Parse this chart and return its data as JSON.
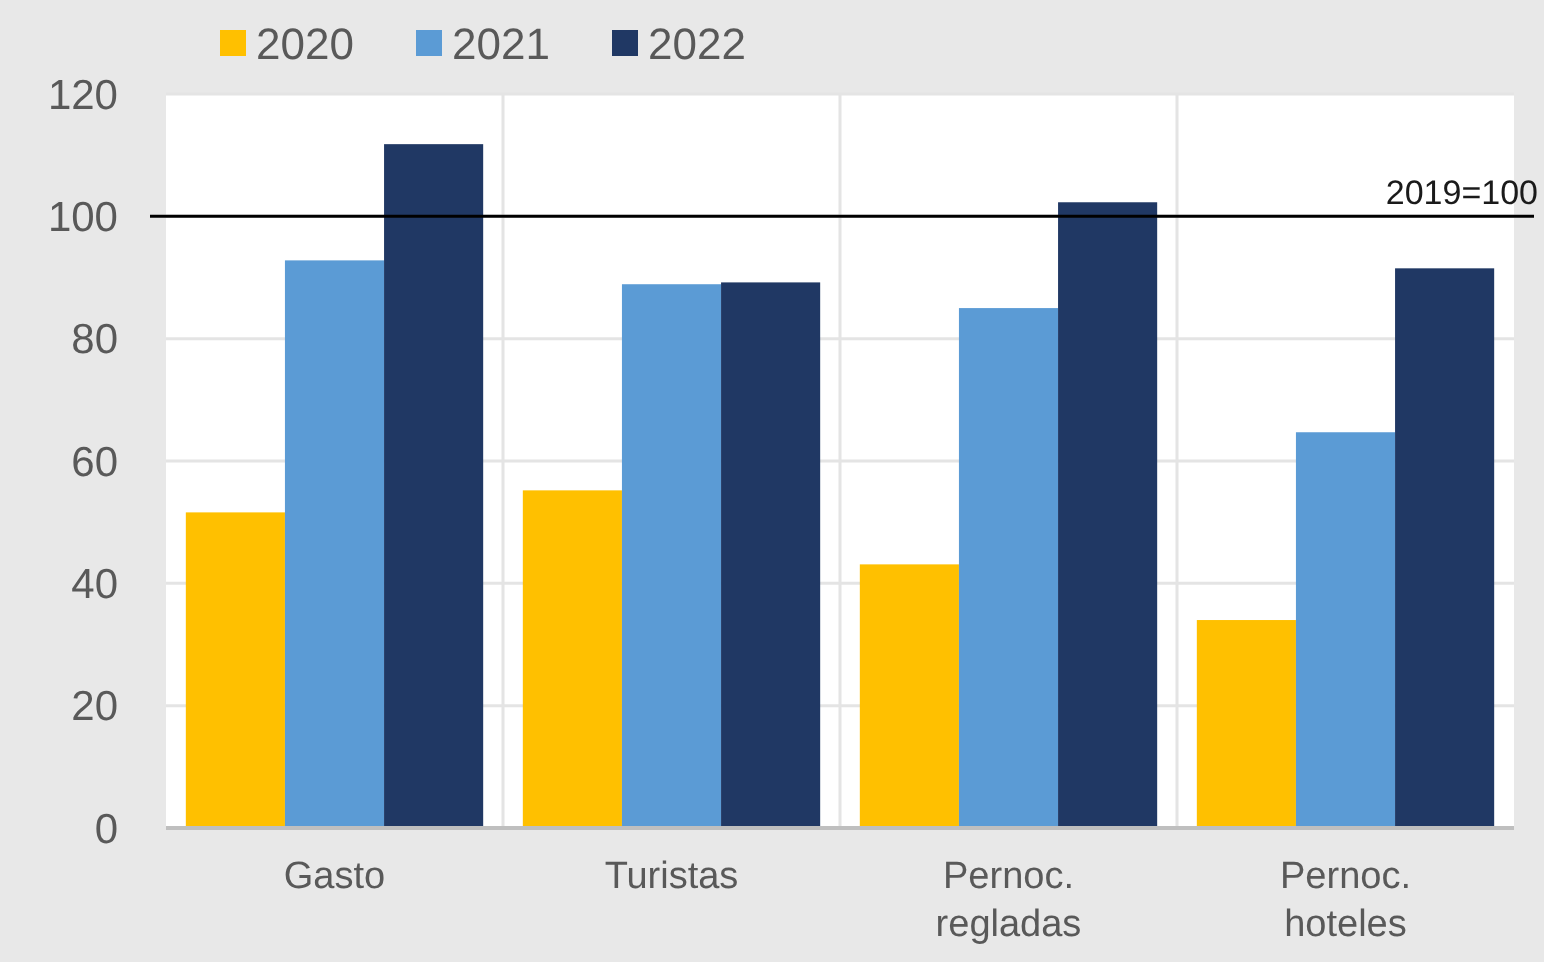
{
  "chart_data": {
    "type": "bar",
    "categories": [
      "Gasto",
      "Turistas",
      "Pernoc. regladas",
      "Pernoc. hoteles"
    ],
    "series": [
      {
        "name": "2020",
        "color": "#ffc000",
        "values": [
          51.6,
          55.2,
          43.1,
          34
        ]
      },
      {
        "name": "2021",
        "color": "#5b9bd5",
        "values": [
          92.8,
          88.9,
          85,
          64.7
        ]
      },
      {
        "name": "2022",
        "color": "#203864",
        "values": [
          111.8,
          89.2,
          102.3,
          91.5
        ]
      }
    ],
    "ylim": [
      0,
      120
    ],
    "yticks": [
      0,
      20,
      40,
      60,
      80,
      100,
      120
    ],
    "grid": true,
    "legend": "top left",
    "ref_lines": [
      {
        "axis": "y",
        "value": 100,
        "label": "2019=100",
        "color": "#000000"
      }
    ]
  }
}
